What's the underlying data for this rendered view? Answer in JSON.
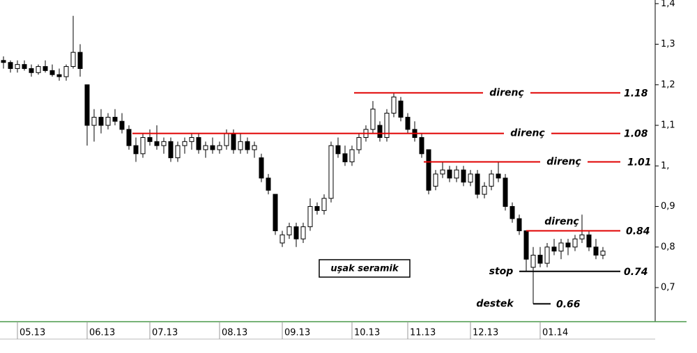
{
  "chart_data": {
    "type": "candlestick",
    "title": "uşak seramik",
    "ylim": [
      0.616,
      1.409
    ],
    "yticks": [
      {
        "value": 1.4,
        "label": "1,4"
      },
      {
        "value": 1.3,
        "label": "1,3"
      },
      {
        "value": 1.2,
        "label": "1,2"
      },
      {
        "value": 1.1,
        "label": "1,1"
      },
      {
        "value": 1.0,
        "label": "1,"
      },
      {
        "value": 0.9,
        "label": "0,9"
      },
      {
        "value": 0.8,
        "label": "0,8"
      },
      {
        "value": 0.7,
        "label": "0,7"
      }
    ],
    "xticks": [
      {
        "value": 2,
        "label": "05.13"
      },
      {
        "value": 12,
        "label": "06.13"
      },
      {
        "value": 21,
        "label": "07.13"
      },
      {
        "value": 31,
        "label": "08.13"
      },
      {
        "value": 40,
        "label": "09.13"
      },
      {
        "value": 50,
        "label": "10.13"
      },
      {
        "value": 58,
        "label": "11.13"
      },
      {
        "value": 67,
        "label": "12.13"
      },
      {
        "value": 77,
        "label": "01.14"
      }
    ],
    "candles": [
      [
        1.26,
        1.27,
        1.24,
        1.255
      ],
      [
        1.255,
        1.26,
        1.23,
        1.24
      ],
      [
        1.24,
        1.26,
        1.23,
        1.25
      ],
      [
        1.25,
        1.26,
        1.235,
        1.24
      ],
      [
        1.24,
        1.25,
        1.22,
        1.23
      ],
      [
        1.23,
        1.25,
        1.225,
        1.245
      ],
      [
        1.245,
        1.26,
        1.23,
        1.235
      ],
      [
        1.235,
        1.25,
        1.22,
        1.225
      ],
      [
        1.225,
        1.24,
        1.21,
        1.22
      ],
      [
        1.22,
        1.25,
        1.21,
        1.245
      ],
      [
        1.245,
        1.37,
        1.24,
        1.28
      ],
      [
        1.28,
        1.3,
        1.22,
        1.24
      ],
      [
        1.2,
        1.2,
        1.05,
        1.1
      ],
      [
        1.1,
        1.14,
        1.06,
        1.12
      ],
      [
        1.12,
        1.14,
        1.08,
        1.1
      ],
      [
        1.1,
        1.13,
        1.09,
        1.12
      ],
      [
        1.12,
        1.14,
        1.1,
        1.11
      ],
      [
        1.11,
        1.13,
        1.08,
        1.09
      ],
      [
        1.09,
        1.1,
        1.04,
        1.05
      ],
      [
        1.05,
        1.07,
        1.01,
        1.03
      ],
      [
        1.03,
        1.08,
        1.02,
        1.07
      ],
      [
        1.07,
        1.09,
        1.05,
        1.06
      ],
      [
        1.06,
        1.1,
        1.04,
        1.05
      ],
      [
        1.05,
        1.07,
        1.03,
        1.06
      ],
      [
        1.06,
        1.07,
        1.01,
        1.02
      ],
      [
        1.02,
        1.06,
        1.01,
        1.05
      ],
      [
        1.05,
        1.07,
        1.03,
        1.06
      ],
      [
        1.06,
        1.08,
        1.04,
        1.07
      ],
      [
        1.07,
        1.08,
        1.03,
        1.04
      ],
      [
        1.04,
        1.06,
        1.02,
        1.05
      ],
      [
        1.05,
        1.07,
        1.03,
        1.04
      ],
      [
        1.04,
        1.06,
        1.03,
        1.05
      ],
      [
        1.05,
        1.09,
        1.04,
        1.08
      ],
      [
        1.08,
        1.09,
        1.03,
        1.04
      ],
      [
        1.04,
        1.08,
        1.03,
        1.06
      ],
      [
        1.06,
        1.07,
        1.03,
        1.04
      ],
      [
        1.04,
        1.06,
        1.02,
        1.05
      ],
      [
        1.02,
        1.03,
        0.96,
        0.97
      ],
      [
        0.97,
        0.98,
        0.93,
        0.94
      ],
      [
        0.93,
        0.93,
        0.83,
        0.84
      ],
      [
        0.81,
        0.84,
        0.8,
        0.83
      ],
      [
        0.83,
        0.86,
        0.82,
        0.85
      ],
      [
        0.85,
        0.86,
        0.8,
        0.82
      ],
      [
        0.82,
        0.86,
        0.81,
        0.85
      ],
      [
        0.85,
        0.92,
        0.84,
        0.9
      ],
      [
        0.9,
        0.91,
        0.88,
        0.89
      ],
      [
        0.89,
        0.93,
        0.88,
        0.92
      ],
      [
        0.92,
        1.06,
        0.91,
        1.05
      ],
      [
        1.05,
        1.07,
        1.02,
        1.03
      ],
      [
        1.03,
        1.05,
        1.0,
        1.01
      ],
      [
        1.01,
        1.05,
        1.0,
        1.04
      ],
      [
        1.04,
        1.08,
        1.03,
        1.07
      ],
      [
        1.07,
        1.1,
        1.06,
        1.09
      ],
      [
        1.09,
        1.16,
        1.08,
        1.14
      ],
      [
        1.1,
        1.11,
        1.06,
        1.07
      ],
      [
        1.07,
        1.14,
        1.06,
        1.13
      ],
      [
        1.13,
        1.18,
        1.12,
        1.17
      ],
      [
        1.16,
        1.17,
        1.11,
        1.12
      ],
      [
        1.12,
        1.13,
        1.08,
        1.09
      ],
      [
        1.09,
        1.11,
        1.06,
        1.07
      ],
      [
        1.07,
        1.08,
        1.02,
        1.03
      ],
      [
        1.04,
        1.04,
        0.93,
        0.94
      ],
      [
        0.95,
        0.99,
        0.94,
        0.98
      ],
      [
        0.98,
        1.01,
        0.97,
        0.99
      ],
      [
        0.99,
        1.0,
        0.96,
        0.97
      ],
      [
        0.97,
        1.0,
        0.96,
        0.99
      ],
      [
        0.99,
        1.0,
        0.95,
        0.96
      ],
      [
        0.96,
        0.99,
        0.95,
        0.98
      ],
      [
        0.98,
        0.99,
        0.92,
        0.93
      ],
      [
        0.93,
        0.96,
        0.92,
        0.95
      ],
      [
        0.95,
        0.99,
        0.94,
        0.98
      ],
      [
        0.98,
        1.01,
        0.96,
        0.97
      ],
      [
        0.97,
        0.98,
        0.89,
        0.9
      ],
      [
        0.9,
        0.91,
        0.86,
        0.87
      ],
      [
        0.87,
        0.88,
        0.83,
        0.84
      ],
      [
        0.84,
        0.84,
        0.74,
        0.77
      ],
      [
        0.75,
        0.8,
        0.66,
        0.78
      ],
      [
        0.78,
        0.8,
        0.75,
        0.76
      ],
      [
        0.76,
        0.81,
        0.75,
        0.8
      ],
      [
        0.8,
        0.82,
        0.78,
        0.79
      ],
      [
        0.79,
        0.82,
        0.77,
        0.81
      ],
      [
        0.81,
        0.82,
        0.78,
        0.8
      ],
      [
        0.8,
        0.83,
        0.79,
        0.82
      ],
      [
        0.82,
        0.88,
        0.81,
        0.83
      ],
      [
        0.83,
        0.84,
        0.79,
        0.8
      ],
      [
        0.8,
        0.82,
        0.77,
        0.78
      ],
      [
        0.78,
        0.8,
        0.77,
        0.79
      ]
    ],
    "levels": [
      {
        "name": "direnç",
        "value": 1.18,
        "color": "#e00000"
      },
      {
        "name": "direnç",
        "value": 1.08,
        "color": "#e00000"
      },
      {
        "name": "direnç",
        "value": 1.01,
        "color": "#e00000"
      },
      {
        "name": "direnç",
        "value": 0.84,
        "color": "#e00000"
      },
      {
        "name": "stop",
        "value": 0.74,
        "color": "#000000"
      },
      {
        "name": "destek",
        "value": 0.66,
        "color": "#000000"
      }
    ]
  }
}
